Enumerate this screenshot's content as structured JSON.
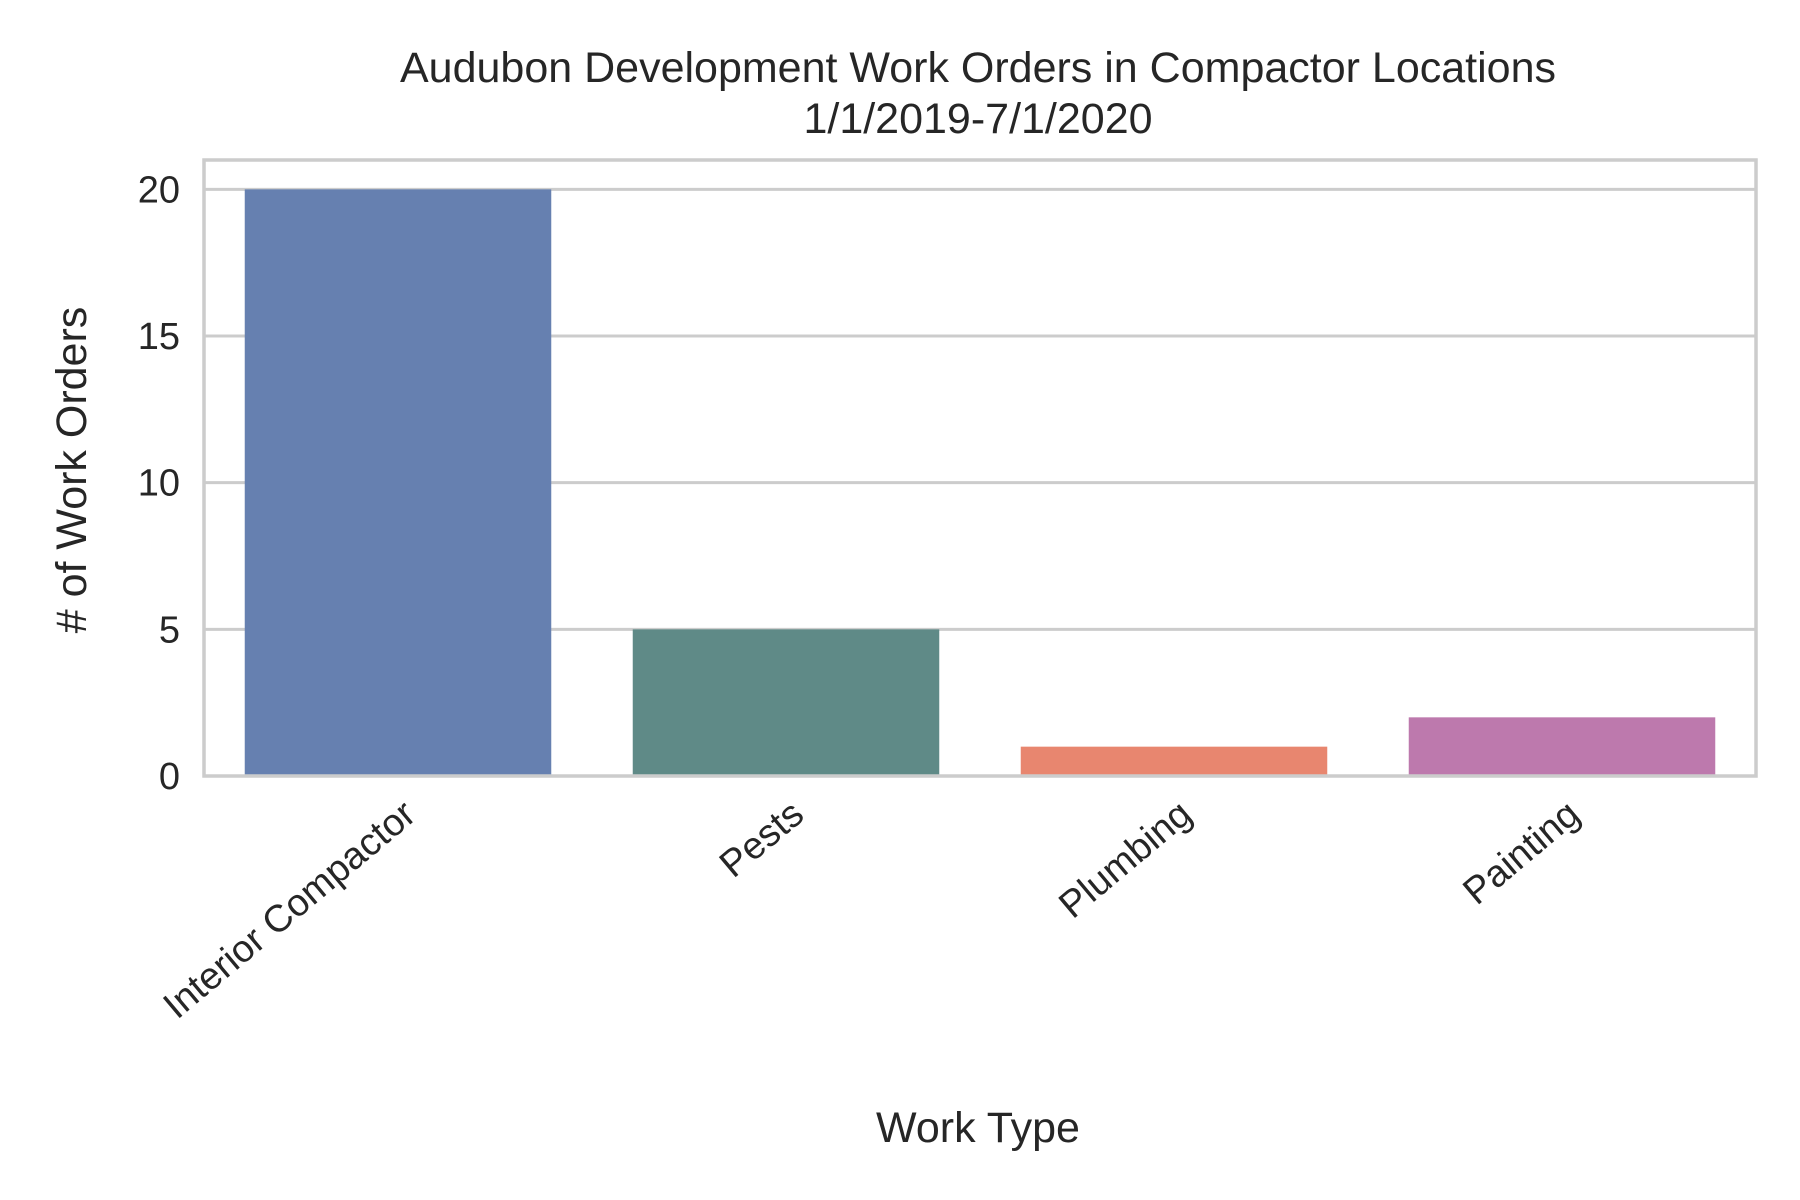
{
  "chart_data": {
    "type": "bar",
    "title": "Audubon Development Work Orders in Compactor Locations",
    "subtitle": "1/1/2019-7/1/2020",
    "xlabel": "Work Type",
    "ylabel": "# of Work Orders",
    "categories": [
      "Interior Compactor",
      "Pests",
      "Plumbing",
      "Painting"
    ],
    "values": [
      20,
      5,
      1,
      2
    ],
    "colors": [
      "#6680b0",
      "#5f8a87",
      "#e8866f",
      "#bd79ad"
    ],
    "ylim": [
      0,
      21
    ],
    "yticks": [
      0,
      5,
      10,
      15,
      20
    ],
    "grid": "horizontal",
    "legend": "none"
  }
}
